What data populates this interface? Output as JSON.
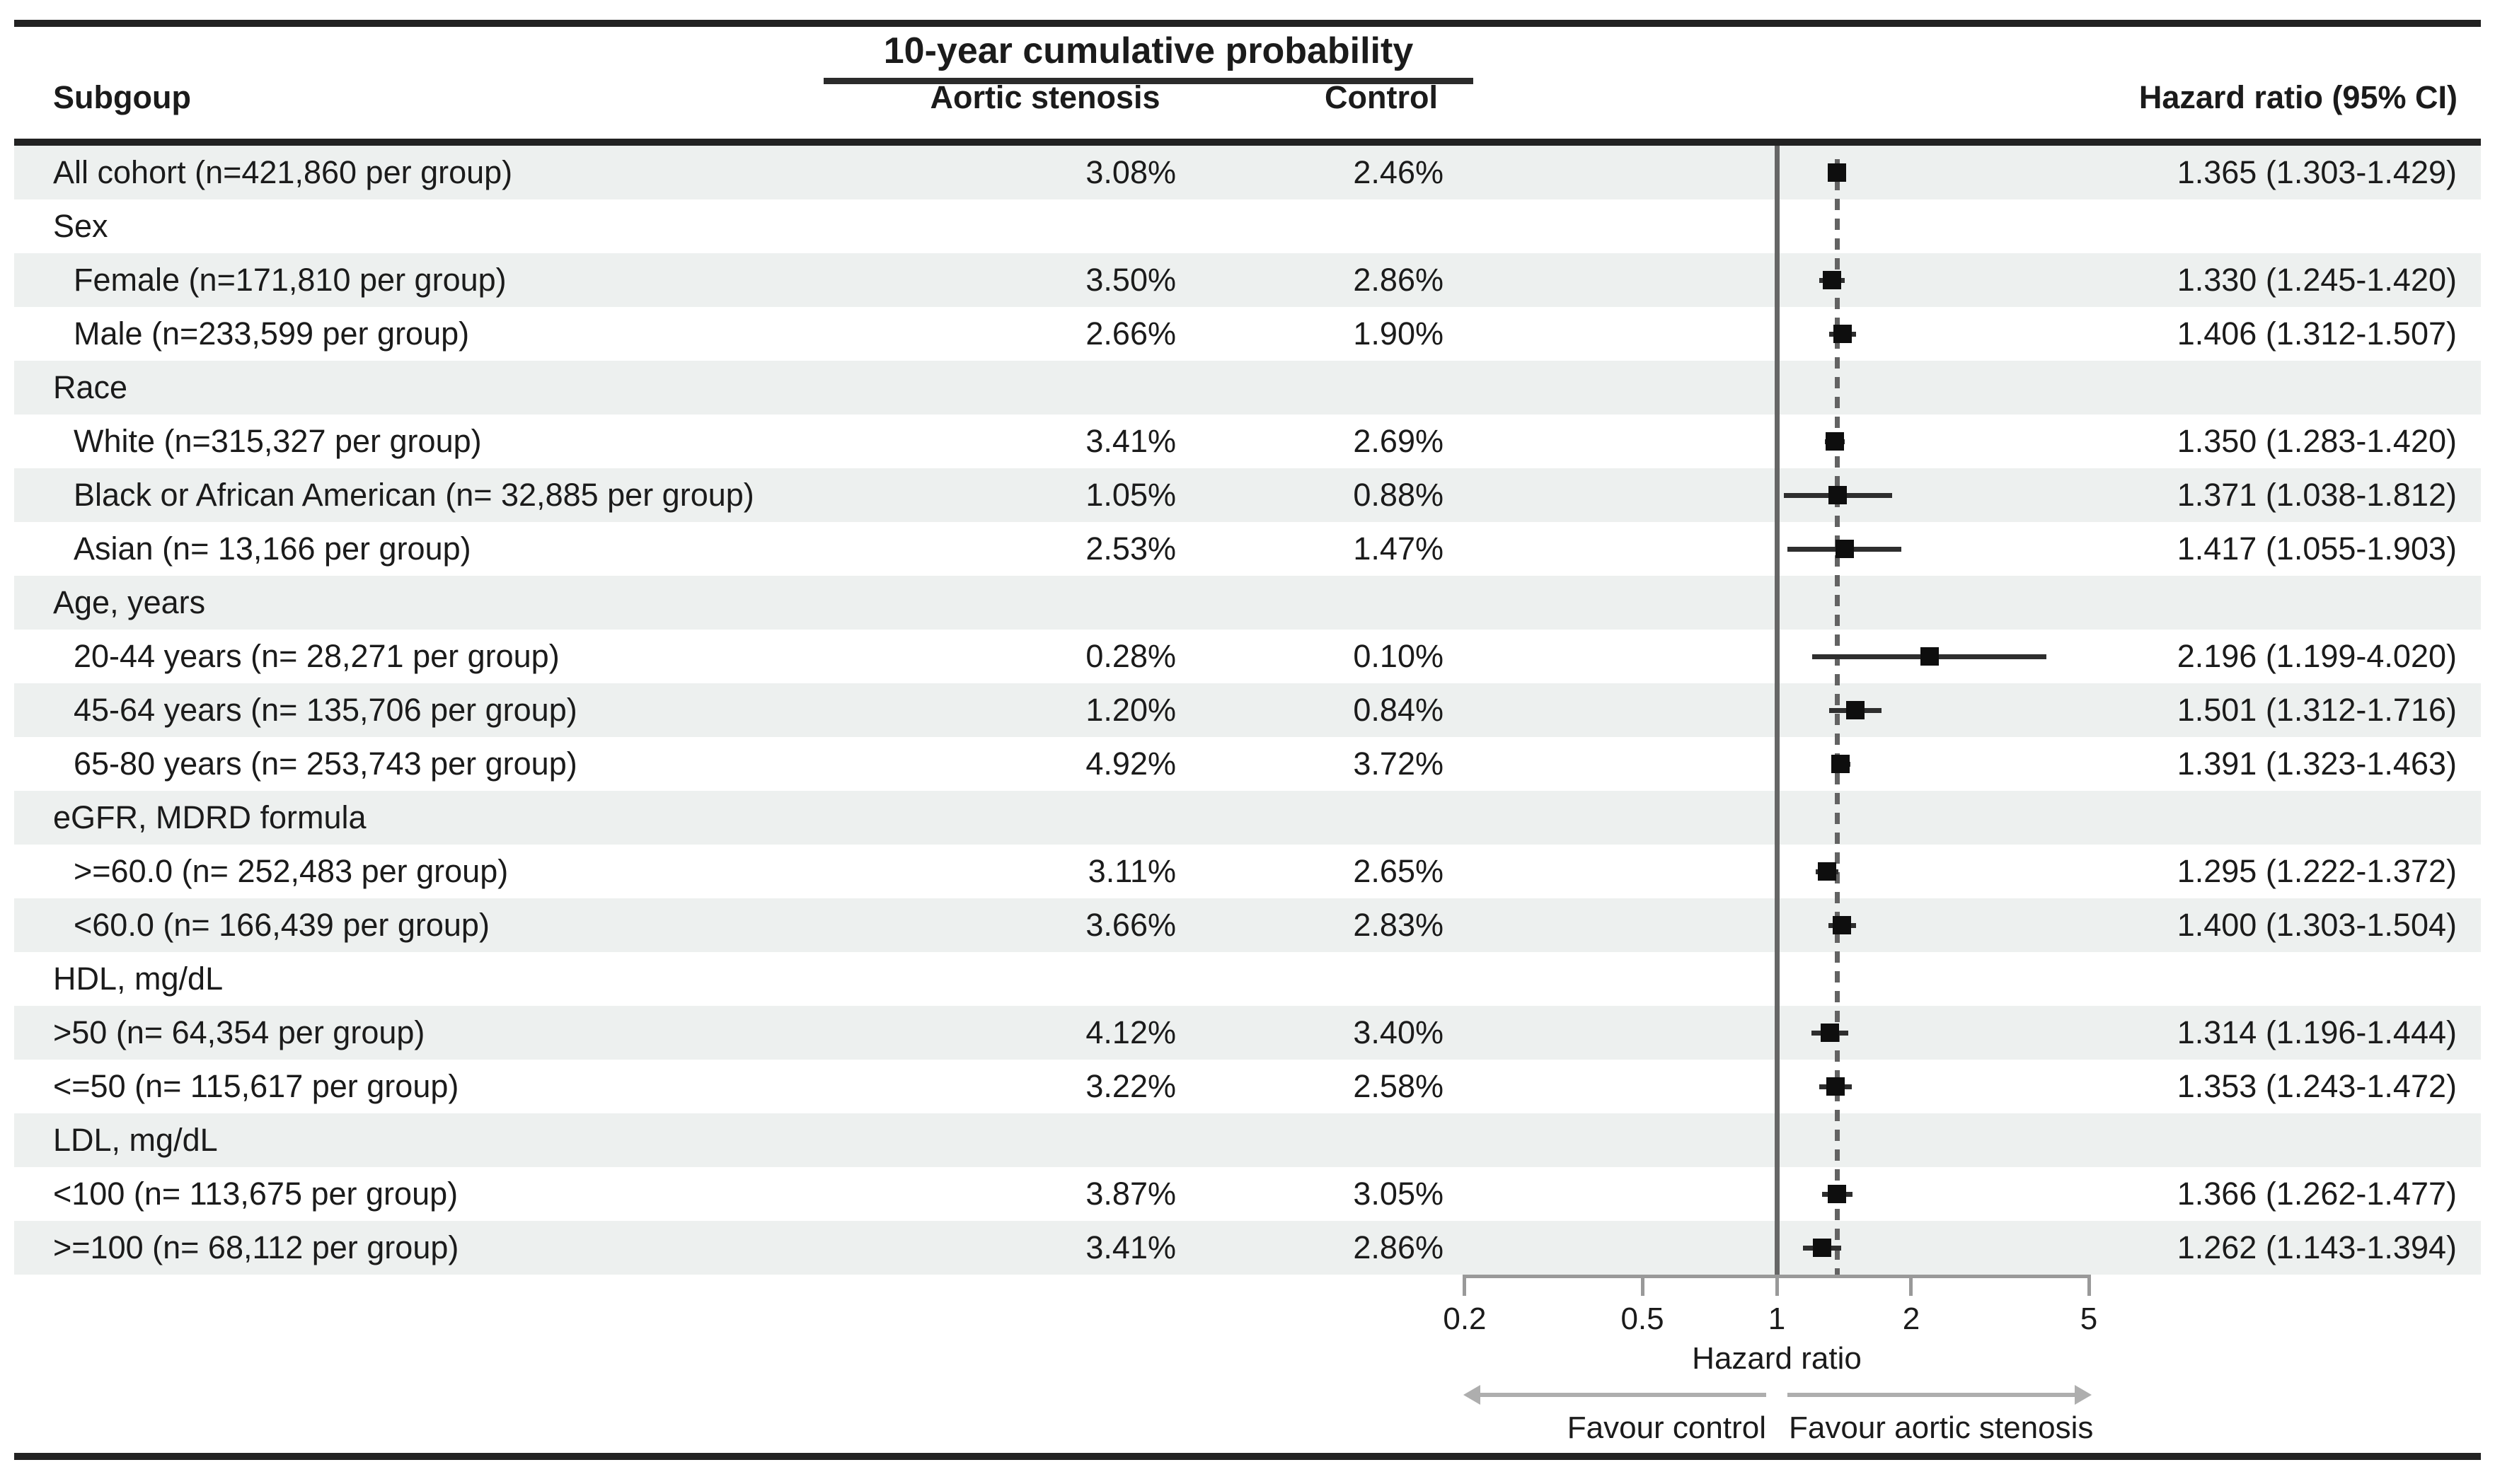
{
  "figure": {
    "title": "10-year cumulative probability",
    "columns": {
      "subgroup": "Subgoup",
      "aortic_stenosis": "Aortic stenosis",
      "control": "Control",
      "hazard_ratio": "Hazard ratio (95% CI)"
    }
  },
  "axis": {
    "tick_labels": [
      "0.2",
      "0.5",
      "1",
      "2",
      "5"
    ],
    "xlabel": "Hazard ratio",
    "left_arrow_label": "Favour control",
    "right_arrow_label": "Favour aortic stenosis"
  },
  "colors": {
    "stripe": "#edf0ef",
    "text": "#1b1b1b",
    "rule": "#222222",
    "axis_gray": "#999999",
    "arrow_gray": "#aeaeae",
    "marker_black": "#0e0e0e",
    "reference_line_gray": "#666666"
  },
  "chart_data": {
    "type": "forest",
    "x_scale": "log10",
    "x_ticks": [
      0.2,
      0.5,
      1,
      2,
      5
    ],
    "x_range": [
      0.2,
      5
    ],
    "reference_line": 1,
    "overall_dashed_line": 1.365,
    "xlabel": "Hazard ratio",
    "rows": [
      {
        "label": "All cohort (n=421,860 per group)",
        "section": false,
        "indent": false,
        "aortic_stenosis": "3.08%",
        "control": "2.46%",
        "hr": 1.365,
        "ci_low": 1.303,
        "ci_high": 1.429,
        "hr_text": "1.365 (1.303-1.429)"
      },
      {
        "label": "Sex",
        "section": true
      },
      {
        "label": "Female (n=171,810 per group)",
        "section": false,
        "indent": true,
        "aortic_stenosis": "3.50%",
        "control": "2.86%",
        "hr": 1.33,
        "ci_low": 1.245,
        "ci_high": 1.42,
        "hr_text": "1.330 (1.245-1.420)"
      },
      {
        "label": "Male (n=233,599 per group)",
        "section": false,
        "indent": true,
        "aortic_stenosis": "2.66%",
        "control": "1.90%",
        "hr": 1.406,
        "ci_low": 1.312,
        "ci_high": 1.507,
        "hr_text": "1.406 (1.312-1.507)"
      },
      {
        "label": "Race",
        "section": true
      },
      {
        "label": "White (n=315,327 per group)",
        "section": false,
        "indent": true,
        "aortic_stenosis": "3.41%",
        "control": "2.69%",
        "hr": 1.35,
        "ci_low": 1.283,
        "ci_high": 1.42,
        "hr_text": "1.350 (1.283-1.420)"
      },
      {
        "label": "Black or African American (n= 32,885 per group)",
        "section": false,
        "indent": true,
        "aortic_stenosis": "1.05%",
        "control": "0.88%",
        "hr": 1.371,
        "ci_low": 1.038,
        "ci_high": 1.812,
        "hr_text": "1.371 (1.038-1.812)"
      },
      {
        "label": "Asian (n= 13,166 per group)",
        "section": false,
        "indent": true,
        "aortic_stenosis": "2.53%",
        "control": "1.47%",
        "hr": 1.417,
        "ci_low": 1.055,
        "ci_high": 1.903,
        "hr_text": "1.417 (1.055-1.903)"
      },
      {
        "label": "Age, years",
        "section": true
      },
      {
        "label": "20-44 years (n= 28,271 per group)",
        "section": false,
        "indent": true,
        "aortic_stenosis": "0.28%",
        "control": "0.10%",
        "hr": 2.196,
        "ci_low": 1.199,
        "ci_high": 4.02,
        "hr_text": "2.196 (1.199-4.020)"
      },
      {
        "label": "45-64 years (n= 135,706 per group)",
        "section": false,
        "indent": true,
        "aortic_stenosis": "1.20%",
        "control": "0.84%",
        "hr": 1.501,
        "ci_low": 1.312,
        "ci_high": 1.716,
        "hr_text": "1.501 (1.312-1.716)"
      },
      {
        "label": "65-80 years (n= 253,743 per group)",
        "section": false,
        "indent": true,
        "aortic_stenosis": "4.92%",
        "control": "3.72%",
        "hr": 1.391,
        "ci_low": 1.323,
        "ci_high": 1.463,
        "hr_text": "1.391 (1.323-1.463)"
      },
      {
        "label": "eGFR, MDRD formula",
        "section": true
      },
      {
        "label": ">=60.0 (n= 252,483 per group)",
        "section": false,
        "indent": true,
        "aortic_stenosis": "3.11%",
        "control": "2.65%",
        "hr": 1.295,
        "ci_low": 1.222,
        "ci_high": 1.372,
        "hr_text": "1.295 (1.222-1.372)"
      },
      {
        "label": "<60.0 (n= 166,439 per group)",
        "section": false,
        "indent": true,
        "aortic_stenosis": "3.66%",
        "control": "2.83%",
        "hr": 1.4,
        "ci_low": 1.303,
        "ci_high": 1.504,
        "hr_text": "1.400 (1.303-1.504)"
      },
      {
        "label": "HDL, mg/dL",
        "section": true
      },
      {
        "label": ">50 (n= 64,354 per group)",
        "section": false,
        "indent": false,
        "aortic_stenosis": "4.12%",
        "control": "3.40%",
        "hr": 1.314,
        "ci_low": 1.196,
        "ci_high": 1.444,
        "hr_text": "1.314 (1.196-1.444)"
      },
      {
        "label": "<=50 (n= 115,617 per group)",
        "section": false,
        "indent": false,
        "aortic_stenosis": "3.22%",
        "control": "2.58%",
        "hr": 1.353,
        "ci_low": 1.243,
        "ci_high": 1.472,
        "hr_text": "1.353 (1.243-1.472)"
      },
      {
        "label": "LDL, mg/dL",
        "section": true
      },
      {
        "label": "<100 (n= 113,675 per group)",
        "section": false,
        "indent": false,
        "aortic_stenosis": "3.87%",
        "control": "3.05%",
        "hr": 1.366,
        "ci_low": 1.262,
        "ci_high": 1.477,
        "hr_text": "1.366 (1.262-1.477)"
      },
      {
        "label": ">=100 (n= 68,112 per group)",
        "section": false,
        "indent": false,
        "aortic_stenosis": "3.41%",
        "control": "2.86%",
        "hr": 1.262,
        "ci_low": 1.143,
        "ci_high": 1.394,
        "hr_text": "1.262 (1.143-1.394)"
      }
    ]
  }
}
